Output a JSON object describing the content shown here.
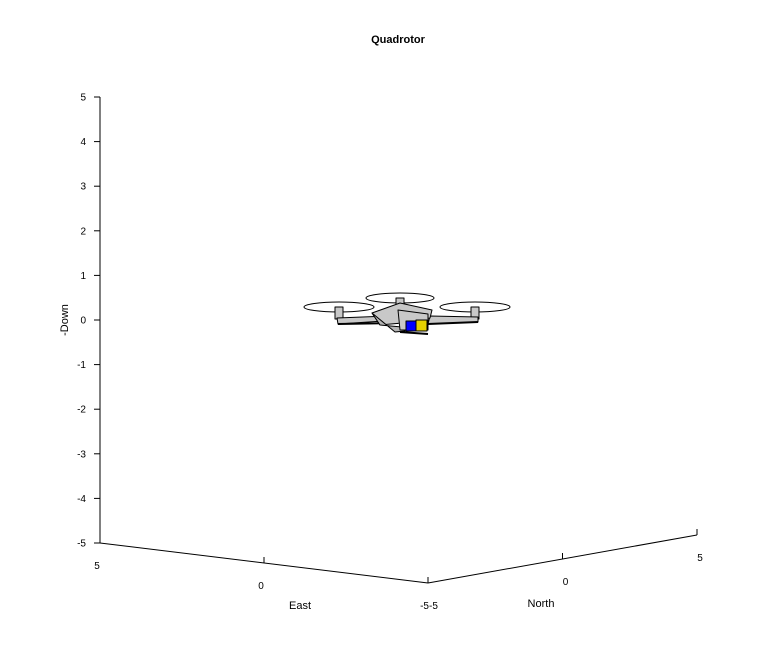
{
  "chart_data": {
    "type": "3d-line",
    "title": "Quadrotor",
    "xlabel": "East",
    "ylabel": "North",
    "zlabel": "-Down",
    "xlim": [
      -5,
      5
    ],
    "ylim": [
      -5,
      5
    ],
    "zlim": [
      -5,
      5
    ],
    "x_tick_labels": [
      "5",
      "0",
      "-5"
    ],
    "y_tick_labels": [
      "-5",
      "0",
      "5"
    ],
    "z_tick_labels": [
      "5",
      "4",
      "3",
      "2",
      "1",
      "0",
      "-1",
      "-2",
      "-3",
      "-4",
      "-5"
    ],
    "grid": false,
    "object": {
      "name": "quadrotor",
      "position": {
        "east": 0,
        "north": 0,
        "down": 0
      },
      "colors": {
        "body": "#c8c8c8",
        "front_face": "#0000ff",
        "side_face": "#e6d200",
        "edge": "#000000"
      }
    }
  }
}
